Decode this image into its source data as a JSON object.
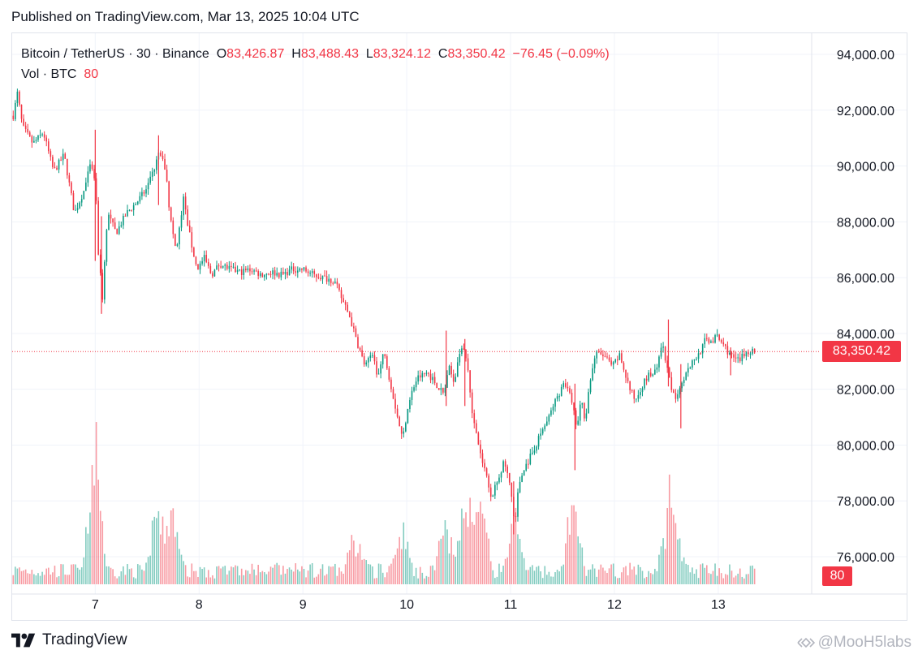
{
  "published": "Published on TradingView.com, Mar 13, 2025 10:04 UTC",
  "legend": {
    "symbol": "Bitcoin / TetherUS · 30 · Binance",
    "open_label": "O",
    "open": "83,426.87",
    "high_label": "H",
    "high": "83,488.43",
    "low_label": "L",
    "low": "83,324.12",
    "close_label": "C",
    "close": "83,350.42",
    "change": "−76.45 (−0.09%)",
    "volume_label": "Vol · BTC",
    "volume": "80"
  },
  "price_tag": "83,350.42",
  "volume_tag": "80",
  "brand": "TradingView",
  "watermark": "@MooH5labs",
  "colors": {
    "up": "#089981",
    "down": "#f23645",
    "grid": "#f0f3fa",
    "axis_text": "#131722"
  },
  "chart_data": {
    "type": "candlestick",
    "ylim": [
      75000,
      95000
    ],
    "y_ticks": [
      "94,000.00",
      "92,000.00",
      "90,000.00",
      "88,000.00",
      "86,000.00",
      "84,000.00",
      "82,000.00",
      "80,000.00",
      "78,000.00",
      "76,000.00"
    ],
    "y_tick_values": [
      94000,
      92000,
      90000,
      88000,
      86000,
      84000,
      82000,
      80000,
      78000,
      76000
    ],
    "x_ticks": [
      "7",
      "8",
      "9",
      "10",
      "11",
      "12",
      "13"
    ],
    "x_tick_values": [
      7,
      8,
      9,
      10,
      11,
      12,
      13
    ],
    "xlim": [
      6.2,
      13.9
    ],
    "last_price": 83350.42,
    "path": [
      [
        6.2,
        91600
      ],
      [
        6.25,
        92600
      ],
      [
        6.3,
        91400
      ],
      [
        6.4,
        90800
      ],
      [
        6.5,
        91200
      ],
      [
        6.6,
        89800
      ],
      [
        6.7,
        90400
      ],
      [
        6.8,
        88300
      ],
      [
        6.9,
        89200
      ],
      [
        6.95,
        90000
      ],
      [
        7.0,
        89500
      ],
      [
        7.03,
        86900
      ],
      [
        7.07,
        85300
      ],
      [
        7.12,
        88300
      ],
      [
        7.2,
        87600
      ],
      [
        7.3,
        88300
      ],
      [
        7.4,
        88700
      ],
      [
        7.5,
        89200
      ],
      [
        7.55,
        89700
      ],
      [
        7.62,
        90500
      ],
      [
        7.68,
        89800
      ],
      [
        7.72,
        88200
      ],
      [
        7.78,
        86900
      ],
      [
        7.85,
        88800
      ],
      [
        7.92,
        87300
      ],
      [
        7.98,
        86300
      ],
      [
        8.05,
        86700
      ],
      [
        8.12,
        86100
      ],
      [
        8.2,
        86500
      ],
      [
        8.3,
        86300
      ],
      [
        8.4,
        86200
      ],
      [
        8.5,
        86300
      ],
      [
        8.6,
        86100
      ],
      [
        8.7,
        86200
      ],
      [
        8.8,
        86100
      ],
      [
        8.9,
        86300
      ],
      [
        9.0,
        86300
      ],
      [
        9.1,
        86100
      ],
      [
        9.2,
        86000
      ],
      [
        9.3,
        85900
      ],
      [
        9.38,
        85200
      ],
      [
        9.45,
        84600
      ],
      [
        9.52,
        83700
      ],
      [
        9.6,
        82800
      ],
      [
        9.67,
        83300
      ],
      [
        9.72,
        82400
      ],
      [
        9.78,
        83300
      ],
      [
        9.84,
        82300
      ],
      [
        9.9,
        81200
      ],
      [
        9.96,
        80200
      ],
      [
        10.02,
        81600
      ],
      [
        10.1,
        82400
      ],
      [
        10.2,
        82600
      ],
      [
        10.3,
        82100
      ],
      [
        10.36,
        81800
      ],
      [
        10.4,
        82800
      ],
      [
        10.46,
        82300
      ],
      [
        10.52,
        83600
      ],
      [
        10.58,
        83000
      ],
      [
        10.64,
        80900
      ],
      [
        10.7,
        79800
      ],
      [
        10.76,
        79000
      ],
      [
        10.82,
        78100
      ],
      [
        10.88,
        78800
      ],
      [
        10.94,
        79400
      ],
      [
        11.0,
        78500
      ],
      [
        11.04,
        77100
      ],
      [
        11.08,
        78600
      ],
      [
        11.14,
        79200
      ],
      [
        11.22,
        79800
      ],
      [
        11.3,
        80500
      ],
      [
        11.36,
        80900
      ],
      [
        11.42,
        81500
      ],
      [
        11.5,
        82100
      ],
      [
        11.55,
        82100
      ],
      [
        11.6,
        81300
      ],
      [
        11.64,
        80600
      ],
      [
        11.68,
        81600
      ],
      [
        11.72,
        80900
      ],
      [
        11.76,
        82200
      ],
      [
        11.82,
        83300
      ],
      [
        11.9,
        83200
      ],
      [
        11.98,
        82800
      ],
      [
        12.05,
        83200
      ],
      [
        12.1,
        82600
      ],
      [
        12.15,
        82000
      ],
      [
        12.2,
        81600
      ],
      [
        12.26,
        82100
      ],
      [
        12.33,
        82500
      ],
      [
        12.4,
        82600
      ],
      [
        12.46,
        83600
      ],
      [
        12.52,
        82500
      ],
      [
        12.58,
        81600
      ],
      [
        12.64,
        82200
      ],
      [
        12.7,
        82700
      ],
      [
        12.76,
        83000
      ],
      [
        12.82,
        83300
      ],
      [
        12.88,
        83800
      ],
      [
        12.94,
        83700
      ],
      [
        12.98,
        83900
      ],
      [
        13.05,
        83600
      ],
      [
        13.12,
        83200
      ],
      [
        13.2,
        83000
      ],
      [
        13.26,
        83300
      ],
      [
        13.3,
        83400
      ],
      [
        13.35,
        83350
      ]
    ],
    "spikes": [
      {
        "x": 7.0,
        "high": 91300,
        "low": 86600
      },
      {
        "x": 7.06,
        "high": 88200,
        "low": 84700
      },
      {
        "x": 7.61,
        "high": 91100,
        "low": 88600
      },
      {
        "x": 10.38,
        "high": 84100,
        "low": 81400
      },
      {
        "x": 10.56,
        "high": 83800,
        "low": 81400
      },
      {
        "x": 11.03,
        "high": 78700,
        "low": 76800
      },
      {
        "x": 11.62,
        "high": 82200,
        "low": 79100
      },
      {
        "x": 12.52,
        "high": 84500,
        "low": 82100
      },
      {
        "x": 12.64,
        "high": 82900,
        "low": 80600
      },
      {
        "x": 13.12,
        "high": 83500,
        "low": 82500
      }
    ],
    "volume_peaks": [
      {
        "x": 7.0,
        "v": 70
      },
      {
        "x": 7.6,
        "v": 36
      },
      {
        "x": 7.75,
        "v": 30
      },
      {
        "x": 9.5,
        "v": 20
      },
      {
        "x": 9.95,
        "v": 25
      },
      {
        "x": 10.38,
        "v": 28
      },
      {
        "x": 10.58,
        "v": 45
      },
      {
        "x": 10.72,
        "v": 35
      },
      {
        "x": 11.05,
        "v": 30
      },
      {
        "x": 11.6,
        "v": 38
      },
      {
        "x": 12.52,
        "v": 32
      },
      {
        "x": 12.6,
        "v": 24
      }
    ]
  }
}
